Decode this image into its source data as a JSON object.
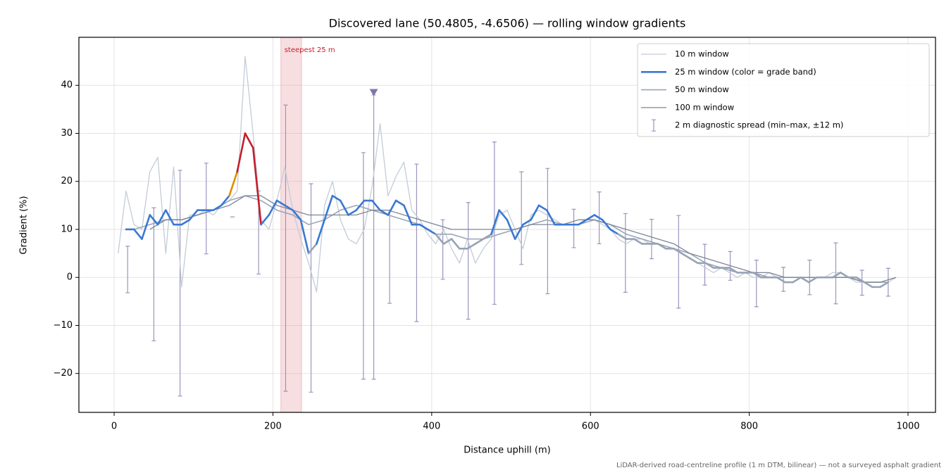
{
  "chart_data": {
    "type": "line",
    "title": "Discovered lane (50.4805, -4.6506) — rolling window gradients",
    "x_label": "Distance uphill (m)",
    "y_label": "Gradient (%)",
    "footnote": "LiDAR-derived road-centreline profile (1 m DTM, bilinear) — not a surveyed asphalt gradient",
    "xlim": [
      -44.4,
      1034.6
    ],
    "ylim": [
      -28.1,
      50
    ],
    "xticks": [
      0,
      200,
      400,
      600,
      800,
      1000
    ],
    "yticks": [
      {
        "value": -20,
        "label": "−20"
      },
      {
        "value": -10,
        "label": "−10"
      },
      0,
      10,
      20,
      30,
      40
    ],
    "grid": true,
    "legend": "upper right",
    "span": {
      "label": "steepest 25 m",
      "x": [
        210,
        236
      ],
      "color": "#e8a0a8"
    },
    "marker": {
      "x": 327,
      "y": 38.5,
      "color": "#7f76a8"
    },
    "series": [
      {
        "name": "10 m window",
        "color": "#c3ccd6",
        "x": [
          5,
          15,
          25,
          35,
          45,
          55,
          65,
          75,
          85,
          95,
          105,
          115,
          125,
          135,
          145,
          155,
          165,
          175,
          185,
          195,
          205,
          215,
          225,
          235,
          245,
          255,
          265,
          275,
          285,
          295,
          305,
          315,
          325,
          335,
          345,
          355,
          365,
          375,
          385,
          395,
          405,
          415,
          425,
          435,
          445,
          455,
          465,
          475,
          485,
          495,
          505,
          515,
          525,
          535,
          545,
          555,
          565,
          575,
          585,
          595,
          605,
          615,
          625,
          635,
          645,
          655,
          665,
          675,
          685,
          695,
          705,
          715,
          725,
          735,
          745,
          755,
          765,
          775,
          785,
          795,
          805,
          815,
          825,
          835,
          845,
          855,
          865,
          875,
          885,
          895,
          905,
          915,
          925,
          935,
          945,
          955,
          965,
          975,
          985
        ],
        "values": [
          5,
          18,
          11,
          10,
          22,
          25,
          5,
          23,
          -2,
          13,
          13,
          14,
          13,
          15,
          16,
          18,
          46,
          30,
          12,
          10,
          16,
          23,
          14,
          8,
          3,
          -3,
          15,
          20,
          12,
          8,
          7,
          10,
          19,
          32,
          17,
          21,
          24,
          14,
          12,
          9,
          7,
          10,
          6,
          3,
          8,
          3,
          6,
          8,
          13,
          14,
          10,
          6,
          13,
          14,
          13,
          12,
          11,
          11,
          11,
          12,
          12,
          11,
          10,
          8,
          7,
          8,
          8,
          7,
          7,
          6,
          6,
          5,
          4,
          3,
          2,
          1,
          2,
          1,
          0,
          1,
          0,
          0,
          1,
          0,
          -1,
          -1,
          0,
          0,
          0,
          0,
          1,
          1,
          0,
          -1,
          -1,
          -2,
          -2,
          -1,
          0
        ]
      },
      {
        "name": "25 m window (color = grade band)",
        "color": "#3a78d4",
        "grade_bands": [
          {
            "min": 10,
            "color": "#3a78d4"
          },
          {
            "min": 20,
            "color": "#e08c00"
          },
          {
            "min": 25,
            "color": "#c41e2b"
          }
        ],
        "below_color": "#97a3b5",
        "x": [
          15,
          25,
          35,
          45,
          55,
          65,
          75,
          85,
          95,
          105,
          115,
          125,
          135,
          145,
          155,
          165,
          175,
          185,
          195,
          205,
          215,
          225,
          235,
          245,
          255,
          265,
          275,
          285,
          295,
          305,
          315,
          325,
          335,
          345,
          355,
          365,
          375,
          385,
          395,
          405,
          415,
          425,
          435,
          445,
          455,
          465,
          475,
          485,
          495,
          505,
          515,
          525,
          535,
          545,
          555,
          565,
          575,
          585,
          595,
          605,
          615,
          625,
          635,
          645,
          655,
          665,
          675,
          685,
          695,
          705,
          715,
          725,
          735,
          745,
          755,
          765,
          775,
          785,
          795,
          805,
          815,
          825,
          835,
          845,
          855,
          865,
          875,
          885,
          895,
          905,
          915,
          925,
          935,
          945,
          955,
          965,
          975
        ],
        "values": [
          10,
          10,
          8,
          13,
          11,
          14,
          11,
          11,
          12,
          14,
          14,
          14,
          15,
          17,
          22,
          30,
          27,
          11,
          13,
          16,
          15,
          14,
          12,
          5,
          7,
          12,
          17,
          16,
          13,
          14,
          16,
          16,
          14,
          13,
          16,
          15,
          11,
          11,
          10,
          9,
          7,
          8,
          6,
          6,
          7,
          8,
          9,
          14,
          12,
          8,
          11,
          12,
          15,
          14,
          11,
          11,
          11,
          11,
          12,
          13,
          12,
          10,
          9,
          8,
          8,
          7,
          7,
          7,
          6,
          6,
          5,
          4,
          3,
          3,
          2,
          2,
          2,
          1,
          1,
          1,
          0,
          0,
          0,
          -1,
          -1,
          0,
          -1,
          0,
          0,
          0,
          1,
          0,
          0,
          -1,
          -2,
          -2,
          -1
        ]
      },
      {
        "name": "50 m window",
        "color": "#9aa6b8",
        "x": [
          25,
          45,
          65,
          85,
          105,
          125,
          145,
          165,
          185,
          205,
          225,
          245,
          265,
          285,
          305,
          325,
          345,
          365,
          385,
          405,
          425,
          445,
          465,
          485,
          505,
          525,
          545,
          565,
          585,
          605,
          625,
          645,
          665,
          685,
          705,
          725,
          745,
          765,
          785,
          805,
          825,
          845,
          865,
          885,
          905,
          925,
          945,
          965,
          975
        ],
        "values": [
          10,
          11,
          12,
          12,
          13,
          14,
          16,
          17,
          16,
          14,
          13,
          11,
          12,
          14,
          15,
          14,
          13,
          12,
          11,
          9,
          9,
          8,
          8,
          9,
          10,
          11,
          12,
          11,
          11,
          12,
          11,
          9,
          8,
          7,
          6,
          5,
          3,
          2,
          1,
          1,
          0,
          0,
          0,
          0,
          0,
          0,
          -1,
          -1,
          -1
        ]
      },
      {
        "name": "100 m window",
        "color": "#7d8594",
        "x": [
          45,
          65,
          85,
          105,
          125,
          145,
          165,
          185,
          205,
          225,
          245,
          265,
          285,
          305,
          325,
          345,
          365,
          385,
          405,
          425,
          445,
          465,
          485,
          505,
          525,
          545,
          565,
          585,
          605,
          625,
          645,
          665,
          685,
          705,
          725,
          745,
          765,
          785,
          805,
          825,
          845,
          865,
          885,
          905,
          925,
          945,
          965,
          985
        ],
        "values": [
          10,
          12,
          12,
          13,
          14,
          15,
          17,
          17,
          15,
          14,
          13,
          13,
          13,
          13,
          14,
          14,
          13,
          12,
          11,
          10,
          10,
          10,
          10,
          10,
          11,
          11,
          11,
          12,
          12,
          11,
          10,
          9,
          8,
          7,
          5,
          4,
          3,
          2,
          1,
          1,
          0,
          0,
          0,
          0,
          0,
          -1,
          -1,
          0
        ]
      }
    ],
    "diagnostic": {
      "name": "2 m diagnostic spread (min–max, ±12 m)",
      "color": "#9b95bd",
      "x": [
        17,
        50,
        83,
        116,
        149,
        182,
        216,
        248,
        314,
        327,
        347,
        381,
        414,
        446,
        479,
        513,
        546,
        579,
        611,
        644,
        677,
        711,
        744,
        776,
        809,
        843,
        876,
        909,
        942,
        975
      ],
      "min": [
        -3.2,
        -13.2,
        -24.7,
        4.9,
        12.6,
        0.7,
        -23.7,
        -23.9,
        -21.2,
        -21.2,
        -5.4,
        -9.2,
        -0.4,
        -8.7,
        -5.6,
        2.7,
        -3.4,
        6.2,
        7.0,
        -3.1,
        3.9,
        -6.4,
        -1.6,
        -0.6,
        -6.1,
        -2.9,
        -3.6,
        -5.5,
        -3.7,
        -3.9
      ],
      "max": [
        6.5,
        14.5,
        22.3,
        23.8,
        12.6,
        18.0,
        35.9,
        19.5,
        26.0,
        38.0,
        14.0,
        23.6,
        12.0,
        15.6,
        28.2,
        22.0,
        22.7,
        14.2,
        17.8,
        13.3,
        12.1,
        12.9,
        6.9,
        5.4,
        3.6,
        2.1,
        3.6,
        7.2,
        1.5,
        1.9
      ]
    }
  }
}
